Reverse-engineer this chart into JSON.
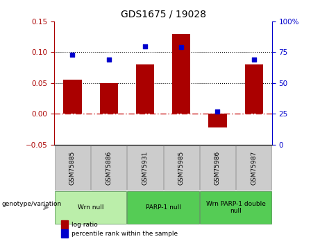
{
  "title": "GDS1675 / 19028",
  "samples": [
    "GSM75885",
    "GSM75886",
    "GSM75931",
    "GSM75985",
    "GSM75986",
    "GSM75987"
  ],
  "log_ratio": [
    0.055,
    0.05,
    0.08,
    0.13,
    -0.022,
    0.08
  ],
  "percentile_rank": [
    73,
    69,
    80,
    79,
    27,
    69
  ],
  "ylim_left": [
    -0.05,
    0.15
  ],
  "ylim_right": [
    0,
    100
  ],
  "yticks_left": [
    -0.05,
    0,
    0.05,
    0.1,
    0.15
  ],
  "yticks_right": [
    0,
    25,
    50,
    75,
    100
  ],
  "hlines": [
    0.05,
    0.1
  ],
  "bar_color": "#AA0000",
  "dot_color": "#0000CC",
  "zero_line_color": "#CC2222",
  "bar_width": 0.5,
  "groups": [
    {
      "label": "Wrn null",
      "start": 0,
      "end": 2,
      "color": "#BBEEAA"
    },
    {
      "label": "PARP-1 null",
      "start": 2,
      "end": 4,
      "color": "#55CC55"
    },
    {
      "label": "Wrn PARP-1 double\nnull",
      "start": 4,
      "end": 6,
      "color": "#55CC55"
    }
  ],
  "legend_entries": [
    {
      "label": "log ratio",
      "color": "#AA0000"
    },
    {
      "label": "percentile rank within the sample",
      "color": "#0000CC"
    }
  ],
  "background_color": "#FFFFFF",
  "plot_bg_color": "#FFFFFF",
  "sample_box_color": "#CCCCCC",
  "title_fontsize": 10,
  "tick_fontsize": 7.5,
  "label_fontsize": 7
}
